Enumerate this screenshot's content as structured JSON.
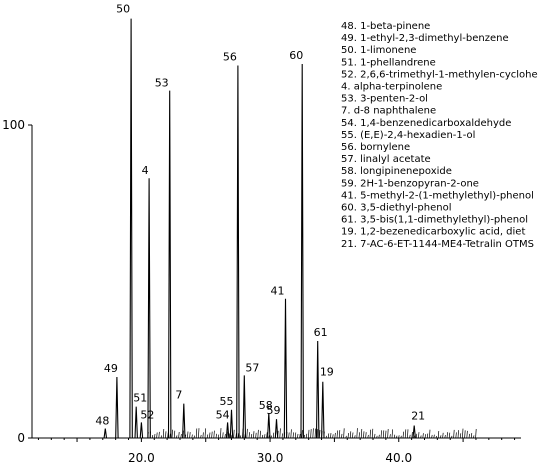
{
  "chart_data": {
    "type": "line",
    "title": "",
    "xlabel": "",
    "ylabel": "",
    "xlim": [
      11.5,
      49.5
    ],
    "ylim": [
      0,
      100
    ],
    "x_ticks": [
      {
        "value": 20,
        "label": "20.0"
      },
      {
        "value": 30,
        "label": "30.0"
      },
      {
        "value": 40,
        "label": "40.0"
      }
    ],
    "y_ticks": [
      {
        "value": 0,
        "label": "0"
      },
      {
        "value": 100,
        "label": "100"
      }
    ],
    "grid": false,
    "legend_position": "top-right",
    "series_color": "#000000",
    "peaks": [
      {
        "label": "48",
        "x": 17.2,
        "y": 3.0
      },
      {
        "label": "49",
        "x": 18.1,
        "y": 19.5
      },
      {
        "label": "50",
        "x": 19.2,
        "y": 134.0
      },
      {
        "label": "51",
        "x": 19.6,
        "y": 10.0
      },
      {
        "label": "52",
        "x": 20.0,
        "y": 5.0
      },
      {
        "label": "4",
        "x": 20.6,
        "y": 83.0
      },
      {
        "label": "53",
        "x": 22.2,
        "y": 111.0
      },
      {
        "label": "7",
        "x": 23.3,
        "y": 11.0
      },
      {
        "label": "54",
        "x": 26.7,
        "y": 5.0
      },
      {
        "label": "55",
        "x": 27.0,
        "y": 9.0
      },
      {
        "label": "56",
        "x": 27.5,
        "y": 119.0
      },
      {
        "label": "57",
        "x": 28.0,
        "y": 20.0
      },
      {
        "label": "58",
        "x": 29.9,
        "y": 8.0
      },
      {
        "label": "59",
        "x": 30.5,
        "y": 6.0
      },
      {
        "label": "41",
        "x": 31.2,
        "y": 44.5
      },
      {
        "label": "60",
        "x": 32.5,
        "y": 119.5
      },
      {
        "label": "61",
        "x": 33.7,
        "y": 31.0
      },
      {
        "label": "19",
        "x": 34.1,
        "y": 18.0
      },
      {
        "label": "21",
        "x": 41.2,
        "y": 4.0
      }
    ],
    "legend": [
      "48. 1-beta-pinene",
      "49. 1-ethyl-2,3-dimethyl-benzene",
      "50. 1-limonene",
      "51. 1-phellandrene",
      "52. 2,6,6-trimethyl-1-methylen-cyclohe",
      "4. alpha-terpinolene",
      "53. 3-penten-2-ol",
      "7. d-8 naphthalene",
      "54. 1,4-benzenedicarboxaldehyde",
      "55. (E,E)-2,4-hexadien-1-ol",
      "56. bornylene",
      "57. linalyl acetate",
      "58. longipinenepoxide",
      "59. 2H-1-benzopyran-2-one",
      "41. 5-methyl-2-(1-methylethyl)-phenol",
      "60. 3,5-diethyl-phenol",
      "61. 3,5-bis(1,1-dimethylethyl)-phenol",
      "19. 1,2-bezenedicarboxylic acid, diet",
      "21. 7-AC-6-ET-1144-ME4-Tetralin OTMS"
    ]
  }
}
